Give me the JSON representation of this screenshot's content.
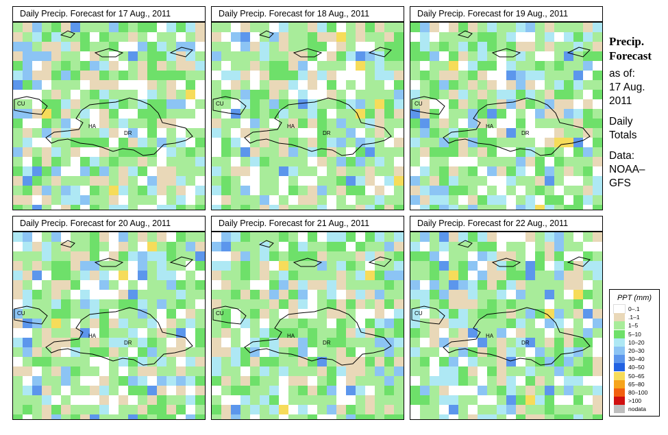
{
  "panels": [
    {
      "title": "Daily Precip. Forecast for  17 Aug., 2011"
    },
    {
      "title": "Daily Precip. Forecast for  18 Aug., 2011"
    },
    {
      "title": "Daily Precip. Forecast for  19 Aug., 2011"
    },
    {
      "title": "Daily Precip. Forecast for  20 Aug., 2011"
    },
    {
      "title": "Daily Precip. Forecast for  21 Aug., 2011"
    },
    {
      "title": "Daily Precip. Forecast for  22 Aug., 2011"
    }
  ],
  "map_labels": {
    "cuba": "CU",
    "haiti": "HA",
    "dominican_republic": "DR"
  },
  "sidebar": {
    "title_line1": "Precip.",
    "title_line2": "Forecast",
    "asof_line1": "as of:",
    "asof_line2": "17 Aug.",
    "asof_line3": "2011",
    "totals_line1": "Daily",
    "totals_line2": "Totals",
    "data_line1": "Data:",
    "data_line2": "NOAA–",
    "data_line3": "GFS"
  },
  "legend": {
    "title": "PPT (mm)",
    "items": [
      {
        "label": "0–.1",
        "color": "#ffffff"
      },
      {
        "label": ".1–1",
        "color": "#e9d8b8"
      },
      {
        "label": "1–5",
        "color": "#a8ec9a"
      },
      {
        "label": "5–10",
        "color": "#6ee06a"
      },
      {
        "label": "10–20",
        "color": "#aee8f4"
      },
      {
        "label": "20–30",
        "color": "#8cc4f4"
      },
      {
        "label": "30–40",
        "color": "#5c96ec"
      },
      {
        "label": "40–50",
        "color": "#2262e2"
      },
      {
        "label": "50–65",
        "color": "#f6dc5a"
      },
      {
        "label": "65–80",
        "color": "#f6a41c"
      },
      {
        "label": "80–100",
        "color": "#f26010"
      },
      {
        "label": ">100",
        "color": "#d01010"
      },
      {
        "label": "nodata",
        "color": "#bebebe"
      }
    ]
  }
}
